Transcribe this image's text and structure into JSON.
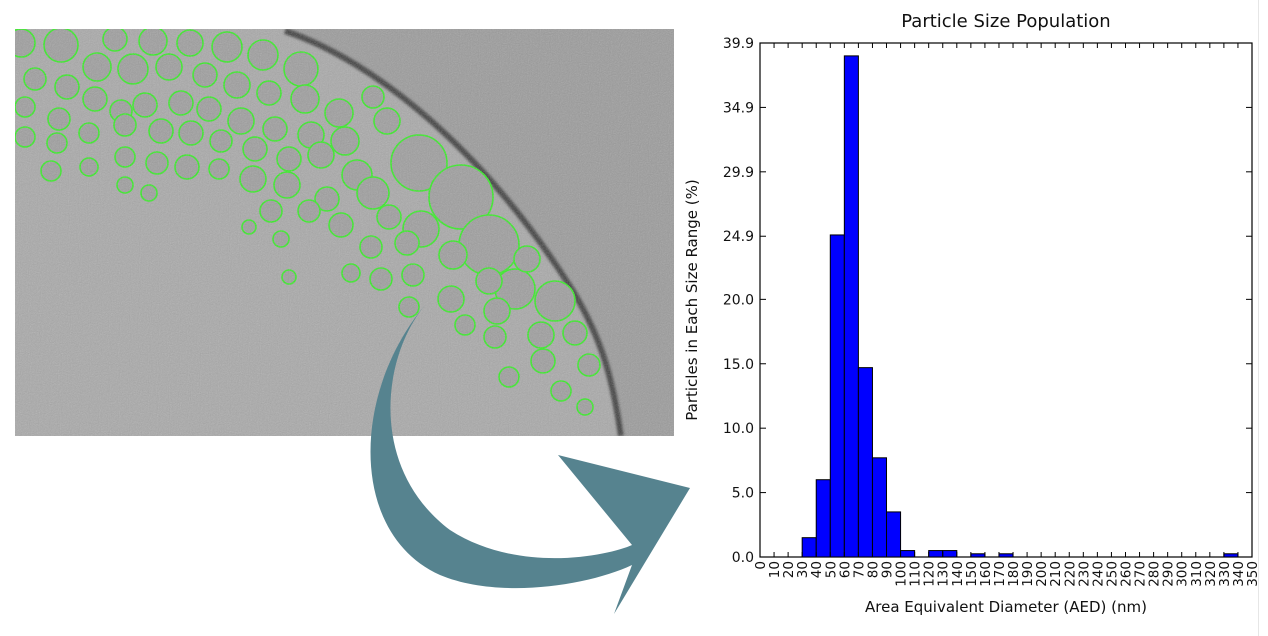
{
  "colors": {
    "bar_fill": "#0000ff",
    "bar_edge": "#000000",
    "arrow": "#56838f",
    "particle_outline": "#33ee22",
    "micrograph_base": "#a9a9a9"
  },
  "micrograph": {
    "name": "cryo-EM micrograph with detected particle outlines"
  },
  "arrow": {
    "icon": "curved-arrow-icon"
  },
  "chart_data": {
    "type": "bar",
    "title": "Particle Size Population",
    "xlabel": "Area Equivalent Diameter (AED) (nm)",
    "ylabel": "Particles in Each Size Range (%)",
    "categories": [
      "0",
      "10",
      "20",
      "30",
      "40",
      "50",
      "60",
      "70",
      "80",
      "90",
      "100",
      "110",
      "120",
      "130",
      "140",
      "150",
      "160",
      "170",
      "180",
      "190",
      "200",
      "210",
      "220",
      "230",
      "240",
      "250",
      "260",
      "270",
      "280",
      "290",
      "300",
      "310",
      "320",
      "330",
      "340",
      "350"
    ],
    "bin_width": 10,
    "values": [
      0,
      0,
      0,
      1.5,
      6.0,
      25.0,
      38.9,
      14.7,
      7.7,
      3.5,
      0.5,
      0,
      0.5,
      0.5,
      0,
      0.25,
      0,
      0.25,
      0,
      0,
      0,
      0,
      0,
      0,
      0,
      0,
      0,
      0,
      0,
      0,
      0,
      0,
      0,
      0.25,
      0,
      0
    ],
    "xlim": [
      0,
      350
    ],
    "ylim": [
      0,
      39.9
    ],
    "yticks": [
      "0.0",
      "5.0",
      "10.0",
      "15.0",
      "20.0",
      "24.9",
      "29.9",
      "34.9",
      "39.9"
    ],
    "ytick_values": [
      0,
      5.0,
      10.0,
      15.0,
      20.0,
      24.9,
      29.9,
      34.9,
      39.9
    ],
    "grid": false,
    "legend": "none"
  }
}
